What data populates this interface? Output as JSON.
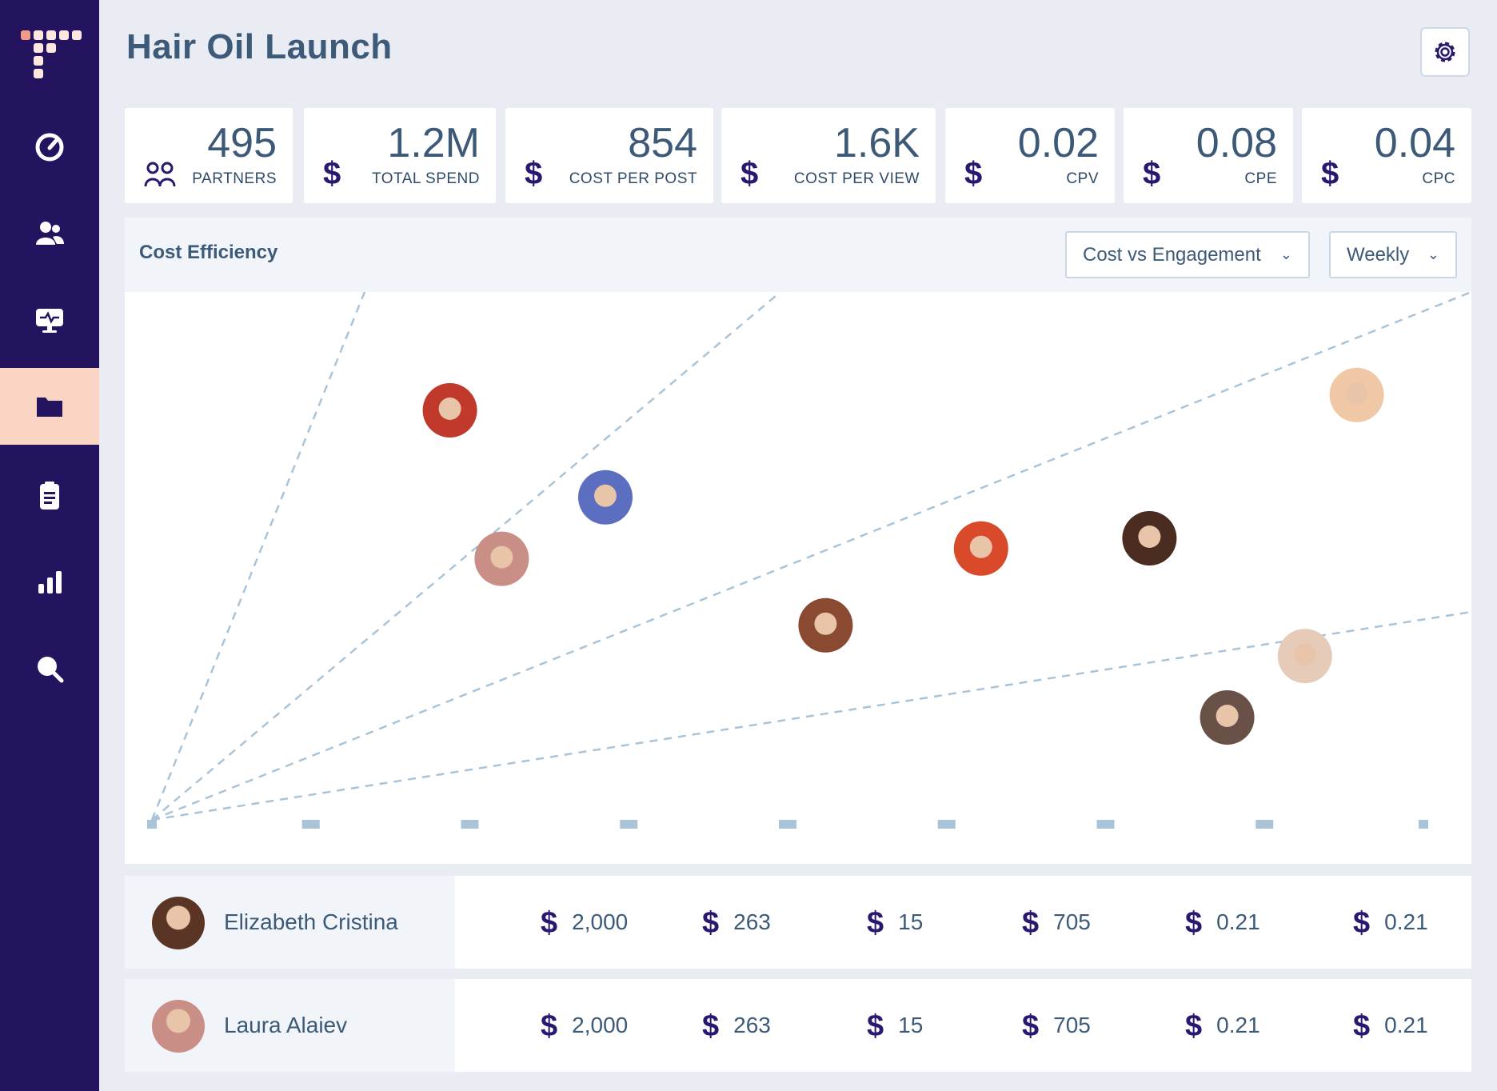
{
  "sidebar": {
    "logo": "logo-icon",
    "items": [
      {
        "icon": "gauge-icon",
        "active": false
      },
      {
        "icon": "users-icon",
        "active": false
      },
      {
        "icon": "monitor-pulse-icon",
        "active": false
      },
      {
        "icon": "folder-icon",
        "active": true
      },
      {
        "icon": "clipboard-icon",
        "active": false
      },
      {
        "icon": "bar-chart-icon",
        "active": false
      },
      {
        "icon": "search-icon",
        "active": false
      }
    ],
    "accent_color": "#24135f",
    "active_color": "#fbd5c4"
  },
  "header": {
    "title": "Hair Oil Launch",
    "settings_icon": "gear-icon"
  },
  "kpis": [
    {
      "value": "495",
      "label": "PARTNERS",
      "icon": "partners-icon"
    },
    {
      "value": "1.2M",
      "label": "TOTAL SPEND",
      "icon": "$"
    },
    {
      "value": "854",
      "label": "COST PER POST",
      "icon": "$"
    },
    {
      "value": "1.6K",
      "label": "COST PER VIEW",
      "icon": "$"
    },
    {
      "value": "0.02",
      "label": "CPV",
      "icon": "$"
    },
    {
      "value": "0.08",
      "label": "CPE",
      "icon": "$"
    },
    {
      "value": "0.04",
      "label": "CPC",
      "icon": "$"
    }
  ],
  "panel": {
    "title": "Cost Efficiency",
    "metric_dropdown": "Cost vs Engagement",
    "period_dropdown": "Weekly"
  },
  "chart_data": {
    "type": "scatter",
    "x_ticks": 9,
    "points": [
      {
        "avatar_color": "#c0392b",
        "x": 0.23,
        "y": 0.8
      },
      {
        "avatar_color": "#5b6ec0",
        "x": 0.35,
        "y": 0.63
      },
      {
        "avatar_color": "#c98f86",
        "x": 0.27,
        "y": 0.51
      },
      {
        "avatar_color": "#8a4a32",
        "x": 0.52,
        "y": 0.38
      },
      {
        "avatar_color": "#d94a2a",
        "x": 0.64,
        "y": 0.53
      },
      {
        "avatar_color": "#4a2c20",
        "x": 0.77,
        "y": 0.55
      },
      {
        "avatar_color": "#f0c8a6",
        "x": 0.93,
        "y": 0.83
      },
      {
        "avatar_color": "#e5cbb8",
        "x": 0.89,
        "y": 0.32
      },
      {
        "avatar_color": "#6a5148",
        "x": 0.83,
        "y": 0.2
      }
    ],
    "trend_lines": 4,
    "line_color": "#a9c4d8"
  },
  "rows": [
    {
      "name": "Elizabeth Cristina",
      "avatar_color": "#5a3424",
      "values": [
        "2,000",
        "263",
        "15",
        "705",
        "0.21",
        "0.21"
      ]
    },
    {
      "name": "Laura Alaiev",
      "avatar_color": "#c98f86",
      "values": [
        "2,000",
        "263",
        "15",
        "705",
        "0.21",
        "0.21"
      ]
    }
  ],
  "currency_symbol": "$"
}
